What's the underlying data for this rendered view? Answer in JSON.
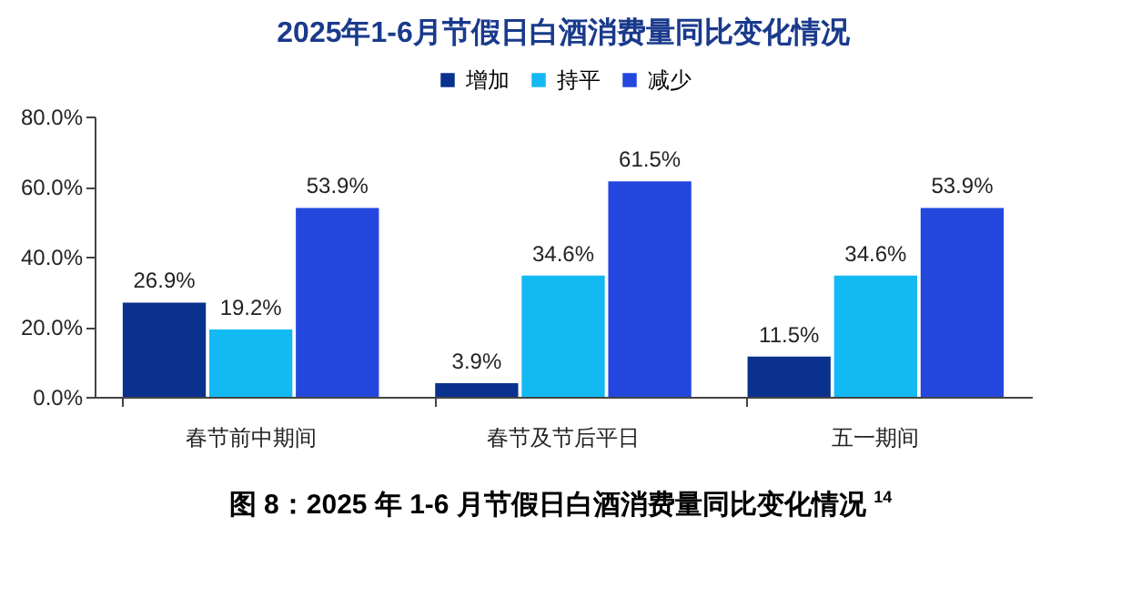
{
  "chart_data": {
    "type": "bar",
    "title": "2025年1-6月节假日白酒消费量同比变化情况",
    "categories": [
      "春节前中期间",
      "春节及节后平日",
      "五一期间"
    ],
    "series": [
      {
        "name": "增加",
        "color": "#0a318c",
        "values": [
          26.9,
          3.9,
          11.5
        ],
        "value_labels": [
          "26.9%",
          "3.9%",
          "11.5%"
        ]
      },
      {
        "name": "持平",
        "color": "#13b9f2",
        "values": [
          19.2,
          34.6,
          34.6
        ],
        "value_labels": [
          "19.2%",
          "34.6%",
          "34.6%"
        ]
      },
      {
        "name": "减少",
        "color": "#2447de",
        "values": [
          53.9,
          61.5,
          53.9
        ],
        "value_labels": [
          "53.9%",
          "61.5%",
          "53.9%"
        ]
      }
    ],
    "ylim": [
      0,
      80
    ],
    "yticks": [
      {
        "value": 0,
        "label": "0.0%"
      },
      {
        "value": 20,
        "label": "20.0%"
      },
      {
        "value": 40,
        "label": "40.0%"
      },
      {
        "value": 60,
        "label": "60.0%"
      },
      {
        "value": 80,
        "label": "80.0%"
      }
    ],
    "grid": false,
    "legend": "top",
    "annotations": [
      "图 8：2025 年 1-6 月节假日白酒消费量同比变化情况 $^{14}$"
    ]
  }
}
